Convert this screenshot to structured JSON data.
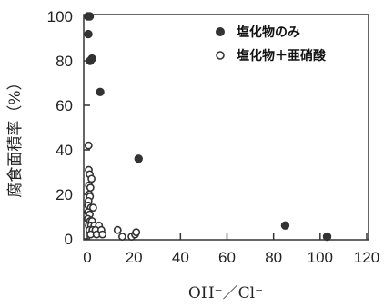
{
  "chart_data": {
    "type": "scatter",
    "title": "",
    "xlabel": "OH⁻／Cl⁻",
    "ylabel": "腐食面積率（%）",
    "xlim": [
      0,
      120
    ],
    "ylim": [
      0,
      100
    ],
    "xticks": [
      "0",
      "20",
      "40",
      "60",
      "80",
      "100",
      "120"
    ],
    "yticks": [
      "0",
      "20",
      "40",
      "60",
      "80",
      "100"
    ],
    "grid": false,
    "legend_position": "top-right",
    "series": [
      {
        "name": "塩化物のみ",
        "marker": "filled-circle",
        "color": "#333333",
        "points": [
          [
            0.3,
            100
          ],
          [
            1.0,
            100
          ],
          [
            0.4,
            92
          ],
          [
            1.2,
            80
          ],
          [
            2.0,
            81
          ],
          [
            5.5,
            66
          ],
          [
            22,
            36
          ],
          [
            85,
            6
          ],
          [
            103,
            1
          ]
        ]
      },
      {
        "name": "塩化物＋亜硝酸",
        "marker": "open-circle",
        "color": "#333333",
        "points": [
          [
            0.5,
            42
          ],
          [
            0.6,
            31
          ],
          [
            1.0,
            29
          ],
          [
            1.8,
            27
          ],
          [
            0.7,
            24
          ],
          [
            1.3,
            23
          ],
          [
            0.8,
            20
          ],
          [
            1.1,
            19
          ],
          [
            0.5,
            17
          ],
          [
            0.4,
            15
          ],
          [
            1.5,
            14
          ],
          [
            2.5,
            14
          ],
          [
            0.3,
            12
          ],
          [
            1.0,
            11
          ],
          [
            0.2,
            9
          ],
          [
            1.2,
            8
          ],
          [
            2.0,
            8
          ],
          [
            0.6,
            6
          ],
          [
            1.6,
            6
          ],
          [
            3.0,
            6
          ],
          [
            5.0,
            6
          ],
          [
            0.9,
            4
          ],
          [
            2.2,
            4
          ],
          [
            3.5,
            4
          ],
          [
            6.0,
            4
          ],
          [
            1.4,
            2
          ],
          [
            4.0,
            2
          ],
          [
            6.5,
            2
          ],
          [
            13,
            4
          ],
          [
            15,
            1
          ],
          [
            19,
            1
          ],
          [
            20.5,
            2
          ],
          [
            21,
            3
          ]
        ]
      }
    ]
  }
}
